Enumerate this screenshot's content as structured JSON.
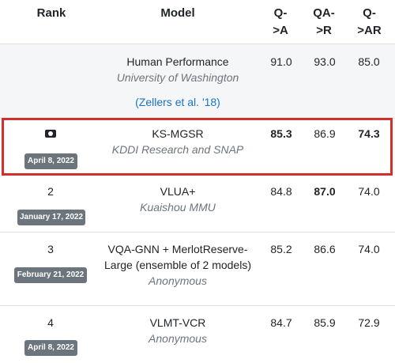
{
  "headers": {
    "rank": "Rank",
    "model": "Model",
    "qa_l1": "Q-",
    "qa_l2": ">A",
    "qar_l1": "QA-",
    "qar_l2": ">R",
    "qtoar_l1": "Q-",
    "qtoar_l2": ">AR"
  },
  "human": {
    "name": "Human Performance",
    "institution": "University of Washington",
    "link": "(Zellers et al. '18)",
    "qa": "91.0",
    "qar": "93.0",
    "qtoar": "85.0"
  },
  "rows": [
    {
      "rank_icon": "ribbon-badge-icon",
      "date": "April 8, 2022",
      "name": "KS-MGSR",
      "institution": "KDDI Research and SNAP",
      "qa": "85.3",
      "qar": "86.9",
      "qtoar": "74.3"
    },
    {
      "rank": "2",
      "date": "January 17, 2022",
      "name": "VLUA+",
      "institution": "Kuaishou MMU",
      "qa": "84.8",
      "qar": "87.0",
      "qtoar": "74.0"
    },
    {
      "rank": "3",
      "date": "February 21, 2022",
      "name_l1": "VQA-GNN + MerlotReserve-",
      "name_l2": "Large (ensemble of 2 models)",
      "institution": "Anonymous",
      "qa": "85.2",
      "qar": "86.6",
      "qtoar": "74.0"
    },
    {
      "rank": "4",
      "date": "April 8, 2022",
      "name": "VLMT-VCR",
      "institution": "Anonymous",
      "qa": "84.7",
      "qar": "85.9",
      "qtoar": "72.9"
    }
  ]
}
